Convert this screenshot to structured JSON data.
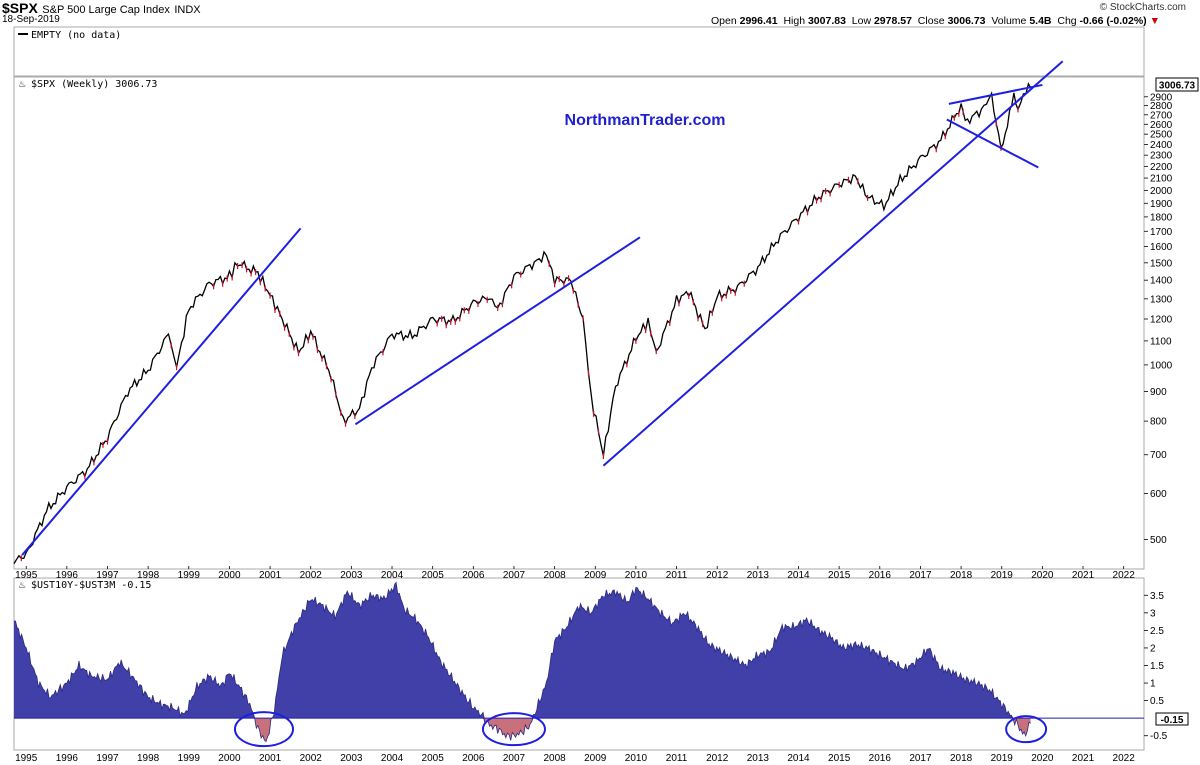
{
  "header": {
    "symbol": "$SPX",
    "name": "S&P 500 Large Cap Index",
    "exchange": "INDX",
    "date": "18-Sep-2019",
    "brand": "© StockCharts.com",
    "open_label": "Open",
    "open": "2996.41",
    "high_label": "High",
    "high": "3007.83",
    "low_label": "Low",
    "low": "2978.57",
    "close_label": "Close",
    "close": "3006.73",
    "volume_label": "Volume",
    "volume": "5.4B",
    "chg_label": "Chg",
    "chg": "-0.66 (-0.02%)",
    "chg_arrow": "▼"
  },
  "empty_panel": {
    "label": "EMPTY (no data)"
  },
  "main_panel": {
    "label": "$SPX (Weekly) 3006.73",
    "price_tag": "3006.73",
    "watermark": "NorthmanTrader.com"
  },
  "spread_panel": {
    "label": "$UST10Y-$UST3M -0.15",
    "value_tag": "-0.15"
  },
  "colors": {
    "trend": "#1f1fe0",
    "area": "#4040a8",
    "neg": "#c8707c",
    "up": "#000000",
    "down": "#c8102e",
    "watermark": "#1f1fd0"
  },
  "chart_data": [
    {
      "type": "line",
      "series_label": "$SPX (Weekly)",
      "scale": "log",
      "ylim": [
        450,
        3100
      ],
      "y_ticks": [
        500,
        600,
        700,
        800,
        900,
        1000,
        1100,
        1200,
        1300,
        1400,
        1500,
        1600,
        1700,
        1800,
        1900,
        2000,
        2100,
        2200,
        2300,
        2400,
        2500,
        2600,
        2700,
        2800,
        2900
      ],
      "x_ticks": [
        "1995",
        "1996",
        "1997",
        "1998",
        "1999",
        "2000",
        "2001",
        "2002",
        "2003",
        "2004",
        "2005",
        "2006",
        "2007",
        "2008",
        "2009",
        "2010",
        "2011",
        "2012",
        "2013",
        "2014",
        "2015",
        "2016",
        "2017",
        "2018",
        "2019",
        "2020",
        "2021",
        "2022"
      ],
      "xlim": [
        1994.7,
        2022.5
      ],
      "x": [
        1994.7,
        1995.0,
        1995.5,
        1996.0,
        1996.5,
        1997.0,
        1997.5,
        1998.0,
        1998.5,
        1998.7,
        1999.0,
        1999.5,
        2000.0,
        2000.2,
        2000.7,
        2001.0,
        2001.3,
        2001.7,
        2002.0,
        2002.5,
        2002.8,
        2003.2,
        2003.5,
        2004.0,
        2004.5,
        2005.0,
        2005.5,
        2006.0,
        2006.4,
        2006.6,
        2007.0,
        2007.5,
        2007.8,
        2008.0,
        2008.4,
        2008.7,
        2008.9,
        2009.2,
        2009.5,
        2010.0,
        2010.3,
        2010.5,
        2011.0,
        2011.3,
        2011.7,
        2012.0,
        2012.5,
        2013.0,
        2013.5,
        2014.0,
        2014.5,
        2015.0,
        2015.4,
        2015.7,
        2016.1,
        2016.5,
        2017.0,
        2017.5,
        2018.0,
        2018.1,
        2018.5,
        2018.75,
        2018.98,
        2019.3,
        2019.4,
        2019.6,
        2019.71
      ],
      "values": [
        460,
        470,
        560,
        615,
        660,
        750,
        900,
        980,
        1130,
        990,
        1250,
        1380,
        1420,
        1500,
        1440,
        1320,
        1200,
        1050,
        1140,
        960,
        800,
        840,
        990,
        1130,
        1120,
        1200,
        1190,
        1280,
        1310,
        1250,
        1420,
        1500,
        1550,
        1400,
        1400,
        1200,
        880,
        700,
        920,
        1110,
        1190,
        1050,
        1290,
        1340,
        1150,
        1310,
        1360,
        1470,
        1650,
        1800,
        1950,
        2050,
        2110,
        1950,
        1880,
        2080,
        2270,
        2440,
        2800,
        2620,
        2750,
        2920,
        2350,
        2900,
        2770,
        2980,
        3006.73
      ],
      "trendlines": [
        {
          "x": [
            1994.9,
            2001.75
          ],
          "y": [
            470,
            1720
          ]
        },
        {
          "x": [
            2003.1,
            2010.1
          ],
          "y": [
            790,
            1660
          ]
        },
        {
          "x": [
            2009.2,
            2020.5
          ],
          "y": [
            670,
            3340
          ]
        },
        {
          "x": [
            2017.7,
            2020.0
          ],
          "y": [
            2820,
            3040
          ]
        },
        {
          "x": [
            2017.65,
            2019.9
          ],
          "y": [
            2650,
            2190
          ]
        }
      ]
    },
    {
      "type": "area",
      "series_label": "$UST10Y-$UST3M",
      "ylim": [
        -0.85,
        3.85
      ],
      "y_ticks": [
        -0.5,
        0.5,
        1.0,
        1.5,
        2.0,
        2.5,
        3.0,
        3.5
      ],
      "xlim": [
        1994.7,
        2022.5
      ],
      "x": [
        1994.7,
        1995.0,
        1995.3,
        1995.6,
        1996.0,
        1996.3,
        1996.6,
        1997.0,
        1997.3,
        1997.6,
        1998.0,
        1998.3,
        1998.6,
        1998.9,
        1999.2,
        1999.5,
        1999.8,
        2000.0,
        2000.3,
        2000.5,
        2000.7,
        2000.9,
        2001.1,
        2001.3,
        2001.6,
        2002.0,
        2002.3,
        2002.6,
        2002.9,
        2003.2,
        2003.5,
        2003.8,
        2004.1,
        2004.3,
        2004.6,
        2004.9,
        2005.2,
        2005.5,
        2005.8,
        2006.0,
        2006.2,
        2006.4,
        2006.6,
        2006.8,
        2007.0,
        2007.2,
        2007.4,
        2007.6,
        2007.8,
        2008.0,
        2008.3,
        2008.6,
        2008.9,
        2009.2,
        2009.5,
        2009.8,
        2010.0,
        2010.3,
        2010.6,
        2010.9,
        2011.2,
        2011.5,
        2011.8,
        2012.1,
        2012.4,
        2012.7,
        2013.0,
        2013.3,
        2013.6,
        2013.9,
        2014.2,
        2014.5,
        2014.8,
        2015.1,
        2015.4,
        2015.7,
        2016.0,
        2016.3,
        2016.6,
        2016.9,
        2017.2,
        2017.5,
        2017.8,
        2018.1,
        2018.4,
        2018.7,
        2019.0,
        2019.2,
        2019.4,
        2019.55,
        2019.71
      ],
      "values": [
        2.8,
        2.0,
        1.0,
        0.6,
        1.0,
        1.5,
        1.2,
        1.1,
        1.6,
        1.2,
        0.6,
        0.4,
        0.3,
        0.1,
        0.9,
        1.2,
        0.9,
        1.3,
        0.8,
        0.4,
        -0.3,
        -0.7,
        0.2,
        1.8,
        2.6,
        3.4,
        3.2,
        2.9,
        3.6,
        3.2,
        3.5,
        3.4,
        3.8,
        3.1,
        2.8,
        2.3,
        1.6,
        1.1,
        0.6,
        0.3,
        0.1,
        -0.2,
        -0.3,
        -0.5,
        -0.5,
        -0.4,
        -0.2,
        0.4,
        1.0,
        2.2,
        2.6,
        3.2,
        3.0,
        3.5,
        3.6,
        3.3,
        3.7,
        3.4,
        3.0,
        2.7,
        3.0,
        2.6,
        2.1,
        1.9,
        1.7,
        1.5,
        1.8,
        1.9,
        2.6,
        2.6,
        2.8,
        2.5,
        2.3,
        2.0,
        2.1,
        2.0,
        1.8,
        1.6,
        1.4,
        1.6,
        2.0,
        1.4,
        1.3,
        1.1,
        1.0,
        0.8,
        0.4,
        0.1,
        -0.2,
        -0.5,
        -0.15
      ]
    }
  ]
}
